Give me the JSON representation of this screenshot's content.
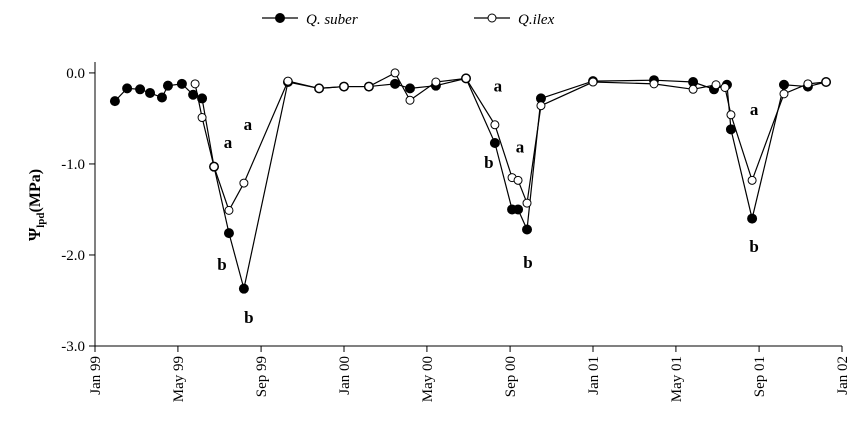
{
  "chart_data": {
    "type": "line",
    "y_label": {
      "symbol": "Ψ",
      "subscript": "lpd",
      "unit": "(MPa)"
    },
    "xlim": [
      1999,
      2002
    ],
    "xticks": [
      {
        "value": 1999,
        "label": "Jan 99"
      },
      {
        "value": 1999.333,
        "label": "May 99"
      },
      {
        "value": 1999.667,
        "label": "Sep 99"
      },
      {
        "value": 2000,
        "label": "Jan 00"
      },
      {
        "value": 2000.333,
        "label": "May 00"
      },
      {
        "value": 2000.667,
        "label": "Sep 00"
      },
      {
        "value": 2001,
        "label": "Jan 01"
      },
      {
        "value": 2001.333,
        "label": "May 01"
      },
      {
        "value": 2001.667,
        "label": "Sep 01"
      },
      {
        "value": 2002,
        "label": "Jan 02"
      }
    ],
    "ylim": [
      -3,
      0.12
    ],
    "yticks": [
      {
        "value": 0,
        "label": "0.0"
      },
      {
        "value": -1,
        "label": "-1.0"
      },
      {
        "value": -2,
        "label": "-2.0"
      },
      {
        "value": -3,
        "label": "-3.0"
      }
    ],
    "series": [
      {
        "name": "Q. suber",
        "color": "#000000",
        "marker": "filled",
        "x": [
          1999.08,
          1999.129,
          1999.181,
          1999.221,
          1999.269,
          1999.293,
          1999.349,
          1999.394,
          1999.43,
          1999.478,
          1999.538,
          1999.598,
          1999.775,
          1999.9,
          2000.0,
          2000.1,
          2000.205,
          2000.265,
          2000.369,
          2000.49,
          2000.606,
          2000.675,
          2000.699,
          2000.735,
          2000.791,
          2001.0,
          2001.245,
          2001.402,
          2001.486,
          2001.538,
          2001.554,
          2001.639,
          2001.767,
          2001.863,
          2001.936
        ],
        "values": [
          -0.31,
          -0.17,
          -0.18,
          -0.22,
          -0.27,
          -0.14,
          -0.12,
          -0.24,
          -0.28,
          -1.03,
          -1.76,
          -2.37,
          -0.1,
          -0.17,
          -0.15,
          -0.15,
          -0.12,
          -0.17,
          -0.14,
          -0.06,
          -0.77,
          -1.5,
          -1.5,
          -1.72,
          -0.28,
          -0.09,
          -0.08,
          -0.1,
          -0.18,
          -0.13,
          -0.62,
          -1.6,
          -0.13,
          -0.15,
          -0.1
        ]
      },
      {
        "name": "Q.ilex",
        "color": "#000000",
        "marker": "open",
        "x": [
          1999.402,
          1999.43,
          1999.478,
          1999.538,
          1999.598,
          1999.775,
          1999.9,
          2000.0,
          2000.1,
          2000.205,
          2000.265,
          2000.369,
          2000.49,
          2000.606,
          2000.675,
          2000.699,
          2000.735,
          2000.791,
          2001.0,
          2001.245,
          2001.402,
          2001.494,
          2001.53,
          2001.554,
          2001.639,
          2001.767,
          2001.863,
          2001.936
        ],
        "values": [
          -0.12,
          -0.49,
          -1.03,
          -1.51,
          -1.21,
          -0.09,
          -0.17,
          -0.15,
          -0.15,
          0.0,
          -0.3,
          -0.1,
          -0.06,
          -0.57,
          -1.15,
          -1.18,
          -1.43,
          -0.36,
          -0.1,
          -0.12,
          -0.18,
          -0.13,
          -0.16,
          -0.46,
          -1.18,
          -0.23,
          -0.12,
          -0.1
        ]
      }
    ],
    "annotations": [
      {
        "text": "a",
        "x": 1999.614,
        "y": -0.57
      },
      {
        "text": "a",
        "x": 1999.534,
        "y": -0.77
      },
      {
        "text": "b",
        "x": 1999.51,
        "y": -2.11
      },
      {
        "text": "b",
        "x": 1999.618,
        "y": -2.69
      },
      {
        "text": "a",
        "x": 2000.618,
        "y": -0.15
      },
      {
        "text": "a",
        "x": 2000.707,
        "y": -0.82
      },
      {
        "text": "b",
        "x": 2000.582,
        "y": -0.99
      },
      {
        "text": "b",
        "x": 2000.739,
        "y": -2.09
      },
      {
        "text": "a",
        "x": 2001.647,
        "y": -0.41
      },
      {
        "text": "b",
        "x": 2001.647,
        "y": -1.91
      }
    ]
  }
}
